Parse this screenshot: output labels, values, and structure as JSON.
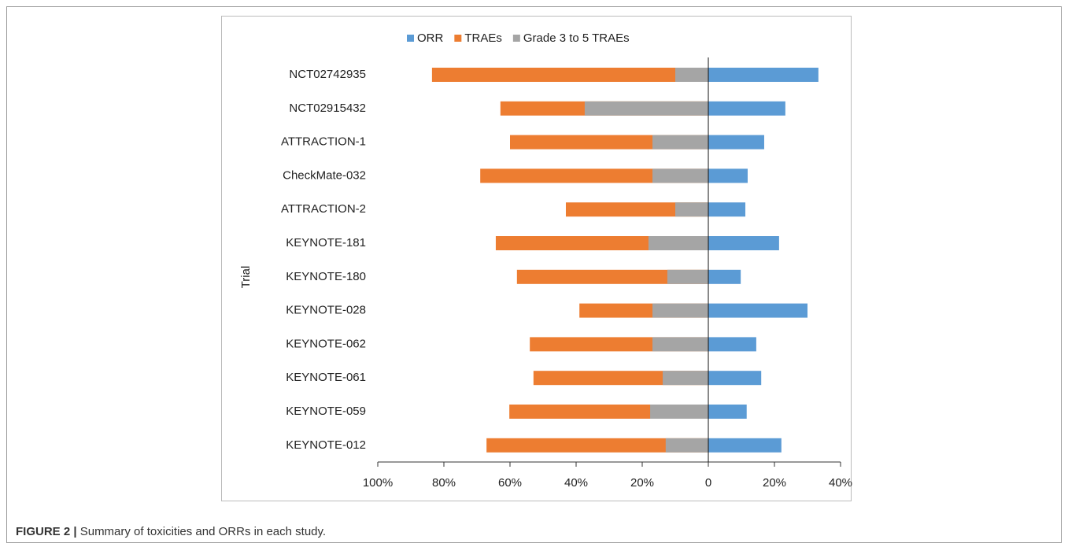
{
  "chart_data": {
    "type": "diverging-bar",
    "figure_label": "FIGURE 2 |",
    "caption": "Summary of toxicities and ORRs in each study.",
    "ylabel": "Trial",
    "categories": [
      "NCT02742935",
      "NCT02915432",
      "ATTRACTION-1",
      "CheckMate-032",
      "ATTRACTION-2",
      "KEYNOTE-181",
      "KEYNOTE-180",
      "KEYNOTE-028",
      "KEYNOTE-062",
      "KEYNOTE-061",
      "KEYNOTE-059",
      "KEYNOTE-012"
    ],
    "series": [
      {
        "name": "ORR",
        "color": "#5b9bd5",
        "values": [
          33.3,
          23.3,
          16.9,
          11.9,
          11.2,
          21.4,
          9.8,
          30.0,
          14.5,
          16.0,
          11.6,
          22.1
        ]
      },
      {
        "name": "TRAEs",
        "color": "#ed7d31",
        "values": [
          -83.6,
          -62.9,
          -60.0,
          -69.0,
          -43.1,
          -64.3,
          -57.9,
          -39.0,
          -54.0,
          -52.9,
          -60.2,
          -67.1
        ]
      },
      {
        "name": "Grade 3 to 5 TRAEs",
        "color": "#a5a5a5",
        "values": [
          -10.0,
          -37.4,
          -16.9,
          -16.9,
          -10.0,
          -18.1,
          -12.4,
          -16.9,
          -16.9,
          -13.8,
          -17.6,
          -12.9
        ]
      }
    ],
    "xlim": [
      -100,
      40
    ],
    "xticks": [
      {
        "value": -100,
        "label": "100%"
      },
      {
        "value": -80,
        "label": "80%"
      },
      {
        "value": -60,
        "label": "60%"
      },
      {
        "value": -40,
        "label": "40%"
      },
      {
        "value": -20,
        "label": "20%"
      },
      0,
      {
        "value": 20,
        "label": "20%"
      },
      {
        "value": 40,
        "label": "40%"
      }
    ],
    "legend": "top"
  }
}
